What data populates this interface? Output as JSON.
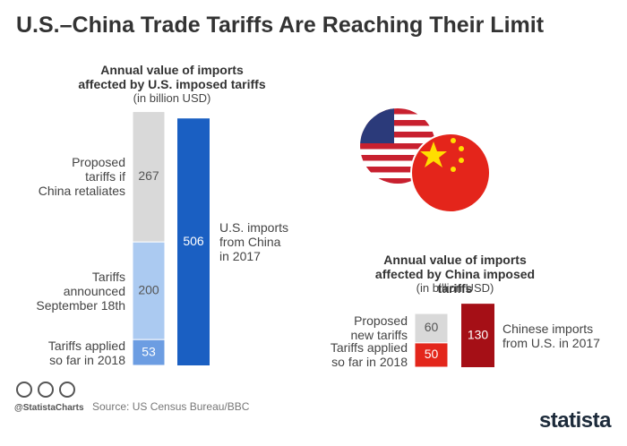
{
  "title": "U.S.–China Trade Tariffs Are Reaching Their Limit",
  "footer": {
    "handle": "@StatistaCharts",
    "source": "Source: US Census Bureau/BBC",
    "brand": "statista"
  },
  "chart_data": [
    {
      "type": "stacked_bar",
      "title": "Annual value of imports\naffected by U.S. imposed tariffs",
      "subtitle": "(in billion USD)",
      "segments": [
        {
          "name": "Tariffs applied\nso far in 2018",
          "value": 53,
          "color": "#6c9de2"
        },
        {
          "name": "Tariffs\nannounced\nSeptember 18th",
          "value": 200,
          "color": "#abcaf1"
        },
        {
          "name": "Proposed\ntariffs if\nChina retaliates",
          "value": 267,
          "color": "#d9d9d9"
        }
      ],
      "total": {
        "name": "U.S. imports\nfrom China\nin 2017",
        "value": 506,
        "color": "#1a5fc2"
      }
    },
    {
      "type": "stacked_bar",
      "title": "Annual value of imports\naffected by China imposed tariffs",
      "subtitle": "(in billion USD)",
      "segments": [
        {
          "name": "Tariffs applied\nso far in 2018",
          "value": 50,
          "color": "#e3261b"
        },
        {
          "name": "Proposed\nnew tariffs",
          "value": 60,
          "color": "#d9d9d9"
        }
      ],
      "total": {
        "name": "Chinese imports\nfrom U.S. in 2017",
        "value": 130,
        "color": "#a50f16"
      }
    }
  ]
}
